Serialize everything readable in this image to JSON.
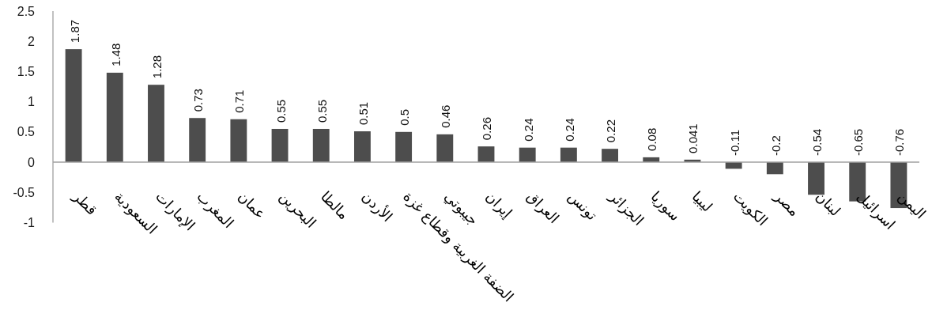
{
  "chart_data": {
    "type": "bar",
    "categories": [
      "قطر",
      "السعودية",
      "الإمارات",
      "المغرب",
      "عمان",
      "البحرين",
      "مالطا",
      "الأردن",
      "الضفة الغربية وقطاع غزة",
      "جيبوتي",
      "إيران",
      "العراق",
      "تونس",
      "الجزائر",
      "سوريا",
      "ليبيا",
      "الكويت",
      "مصر",
      "لبنان",
      "اسرائيل",
      "اليمن"
    ],
    "values": [
      1.87,
      1.48,
      1.28,
      0.73,
      0.71,
      0.55,
      0.55,
      0.51,
      0.5,
      0.46,
      0.26,
      0.24,
      0.24,
      0.22,
      0.08,
      0.041,
      -0.11,
      -0.2,
      -0.54,
      -0.65,
      -0.76
    ],
    "color": "#4d4d4d",
    "ylim": [
      -1,
      2.5
    ],
    "yticks": [
      -1,
      -0.5,
      0,
      0.5,
      1,
      1.5,
      2,
      2.5
    ],
    "data_labels": true
  }
}
